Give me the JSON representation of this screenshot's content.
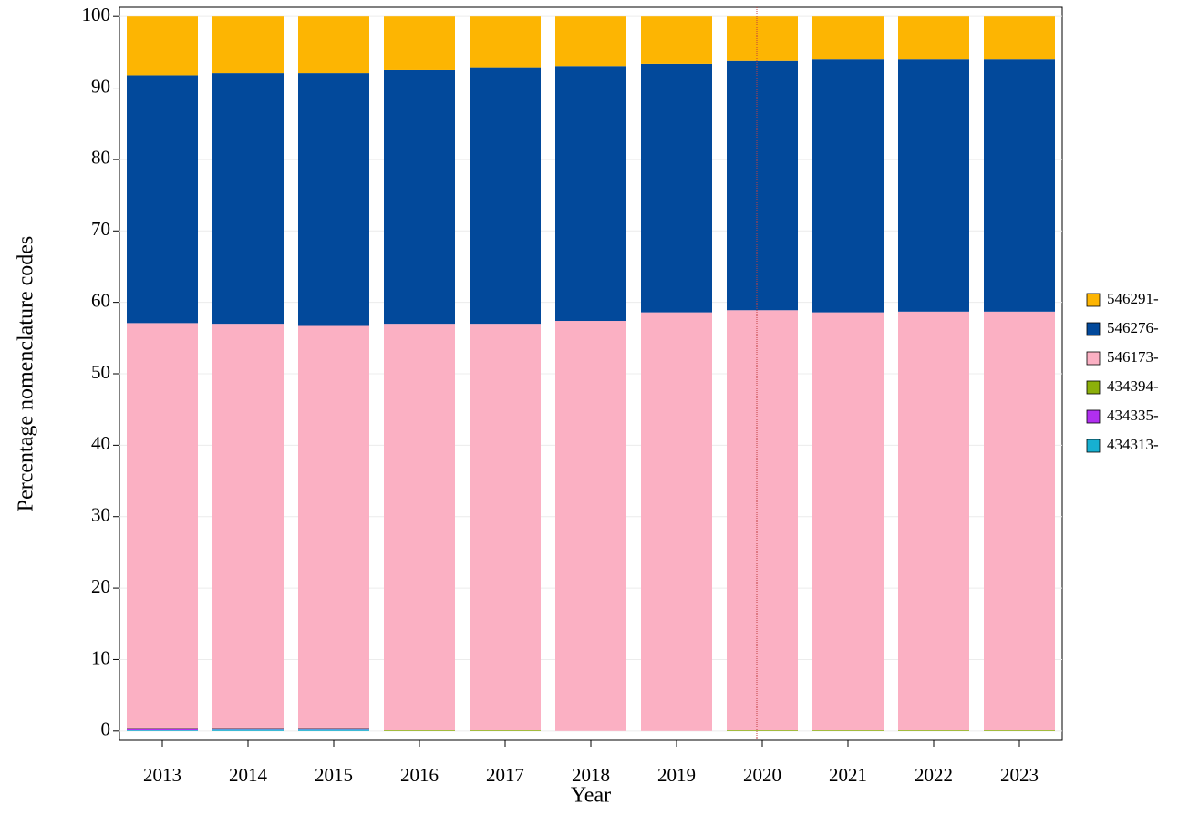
{
  "chart_data": {
    "type": "stacked_bar",
    "x_label": "Year",
    "y_label": "Percentage nomenclature codes",
    "categories": [
      "2013",
      "2014",
      "2015",
      "2016",
      "2017",
      "2018",
      "2019",
      "2020",
      "2021",
      "2022",
      "2023"
    ],
    "series": [
      {
        "name": "434313-",
        "color": "#17b0d1",
        "values": [
          0.1,
          0.2,
          0.2,
          0.0,
          0.0,
          0.0,
          0.0,
          0.0,
          0.0,
          0.0,
          0.0
        ]
      },
      {
        "name": "434335-",
        "color": "#b12ff0",
        "values": [
          0.2,
          0.1,
          0.1,
          0.0,
          0.0,
          0.0,
          0.0,
          0.0,
          0.0,
          0.0,
          0.0
        ]
      },
      {
        "name": "434394-",
        "color": "#8caf0a",
        "values": [
          0.2,
          0.2,
          0.2,
          0.1,
          0.1,
          0.0,
          0.0,
          0.1,
          0.1,
          0.1,
          0.1
        ]
      },
      {
        "name": "546173-",
        "color": "#fbb0c3",
        "values": [
          56.6,
          56.5,
          56.2,
          56.9,
          56.9,
          57.4,
          58.6,
          58.8,
          58.5,
          58.6,
          58.6
        ]
      },
      {
        "name": "546276-",
        "color": "#02499b",
        "values": [
          34.7,
          35.1,
          35.4,
          35.5,
          35.8,
          35.7,
          34.8,
          34.9,
          35.4,
          35.3,
          35.3
        ]
      },
      {
        "name": "546291-",
        "color": "#fdb502",
        "values": [
          8.2,
          7.9,
          7.9,
          7.5,
          7.2,
          6.9,
          6.6,
          6.2,
          6.0,
          6.0,
          6.0
        ]
      }
    ],
    "ylim": [
      -1.3,
      101.3
    ],
    "yticks": [
      0,
      10,
      20,
      30,
      40,
      50,
      60,
      70,
      80,
      90,
      100
    ],
    "grid": true,
    "legend_position": "right"
  }
}
